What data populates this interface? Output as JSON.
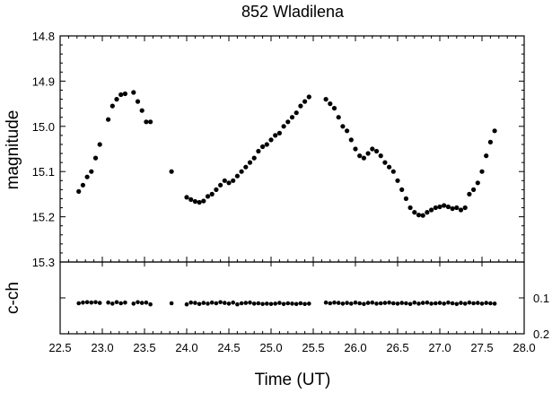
{
  "chart_data": [
    {
      "type": "scatter",
      "panel": "magnitude",
      "title": "852 Wladilena",
      "xlabel": "Time (UT)",
      "ylabel": "magnitude",
      "xlim": [
        22.5,
        28.0
      ],
      "ylim": [
        15.3,
        14.8
      ],
      "y_inverted": true,
      "grid": false,
      "x_ticks": [
        "22.5",
        "23.0",
        "23.5",
        "24.0",
        "24.5",
        "25.0",
        "25.5",
        "26.0",
        "26.5",
        "27.0",
        "27.5",
        "28.0"
      ],
      "y_ticks": [
        "14.8",
        "14.9",
        "15.0",
        "15.1",
        "15.2",
        "15.3"
      ],
      "series": [
        {
          "x": [
            22.72,
            22.77,
            22.82,
            22.87,
            22.92,
            22.97,
            23.07,
            23.12,
            23.17,
            23.22,
            23.27,
            23.37,
            23.42,
            23.47,
            23.52,
            23.57,
            23.82,
            24.0,
            24.05,
            24.1,
            24.15,
            24.2,
            24.25,
            24.3,
            24.35,
            24.4,
            24.45,
            24.5,
            24.55,
            24.6,
            24.65,
            24.7,
            24.75,
            24.8,
            24.85,
            24.9,
            24.95,
            25.0,
            25.05,
            25.1,
            25.15,
            25.2,
            25.25,
            25.3,
            25.35,
            25.4,
            25.45,
            25.65,
            25.7,
            25.75,
            25.8,
            25.85,
            25.9,
            25.95,
            26.0,
            26.05,
            26.1,
            26.15,
            26.2,
            26.25,
            26.3,
            26.35,
            26.4,
            26.45,
            26.5,
            26.55,
            26.6,
            26.65,
            26.7,
            26.75,
            26.8,
            26.85,
            26.9,
            26.95,
            27.0,
            27.05,
            27.1,
            27.15,
            27.2,
            27.25,
            27.3,
            27.35,
            27.4,
            27.45,
            27.5,
            27.55,
            27.6,
            27.65
          ],
          "y": [
            15.144,
            15.13,
            15.112,
            15.1,
            15.07,
            15.04,
            14.985,
            14.955,
            14.94,
            14.93,
            14.928,
            14.925,
            14.945,
            14.965,
            14.99,
            14.99,
            15.1,
            15.157,
            15.162,
            15.166,
            15.168,
            15.165,
            15.155,
            15.15,
            15.14,
            15.13,
            15.12,
            15.125,
            15.12,
            15.11,
            15.1,
            15.09,
            15.08,
            15.07,
            15.055,
            15.045,
            15.04,
            15.03,
            15.02,
            15.015,
            15.0,
            14.99,
            14.98,
            14.97,
            14.955,
            14.945,
            14.935,
            14.94,
            14.95,
            14.96,
            14.98,
            15.0,
            15.01,
            15.03,
            15.05,
            15.065,
            15.07,
            15.06,
            15.05,
            15.055,
            15.065,
            15.08,
            15.09,
            15.1,
            15.12,
            15.14,
            15.16,
            15.18,
            15.19,
            15.196,
            15.197,
            15.19,
            15.185,
            15.18,
            15.178,
            15.175,
            15.178,
            15.182,
            15.18,
            15.185,
            15.18,
            15.15,
            15.14,
            15.125,
            15.1,
            15.065,
            15.035,
            15.01
          ]
        }
      ]
    },
    {
      "type": "scatter",
      "panel": "comparison",
      "ylabel": "c-ch",
      "xlim": [
        22.5,
        28.0
      ],
      "ylim": [
        0.0,
        0.2
      ],
      "y_ticks": [
        "0.1",
        "0.2"
      ],
      "y_ticks_side": "right",
      "series": [
        {
          "x": [
            22.72,
            22.77,
            22.82,
            22.87,
            22.92,
            22.97,
            23.07,
            23.12,
            23.17,
            23.22,
            23.27,
            23.37,
            23.42,
            23.47,
            23.52,
            23.57,
            23.82,
            24.0,
            24.05,
            24.1,
            24.15,
            24.2,
            24.25,
            24.3,
            24.35,
            24.4,
            24.45,
            24.5,
            24.55,
            24.6,
            24.65,
            24.7,
            24.75,
            24.8,
            24.85,
            24.9,
            24.95,
            25.0,
            25.05,
            25.1,
            25.15,
            25.2,
            25.25,
            25.3,
            25.35,
            25.4,
            25.45,
            25.65,
            25.7,
            25.75,
            25.8,
            25.85,
            25.9,
            25.95,
            26.0,
            26.05,
            26.1,
            26.15,
            26.2,
            26.25,
            26.3,
            26.35,
            26.4,
            26.45,
            26.5,
            26.55,
            26.6,
            26.65,
            26.7,
            26.75,
            26.8,
            26.85,
            26.9,
            26.95,
            27.0,
            27.05,
            27.1,
            27.15,
            27.2,
            27.25,
            27.3,
            27.35,
            27.4,
            27.45,
            27.5,
            27.55,
            27.6,
            27.65
          ],
          "y": [
            0.115,
            0.113,
            0.112,
            0.113,
            0.112,
            0.114,
            0.113,
            0.116,
            0.112,
            0.115,
            0.113,
            0.116,
            0.112,
            0.114,
            0.113,
            0.118,
            0.115,
            0.118,
            0.113,
            0.114,
            0.117,
            0.114,
            0.116,
            0.113,
            0.115,
            0.112,
            0.114,
            0.116,
            0.113,
            0.118,
            0.115,
            0.114,
            0.113,
            0.116,
            0.115,
            0.117,
            0.116,
            0.117,
            0.116,
            0.114,
            0.117,
            0.115,
            0.116,
            0.117,
            0.115,
            0.117,
            0.116,
            0.113,
            0.115,
            0.113,
            0.114,
            0.116,
            0.114,
            0.116,
            0.113,
            0.115,
            0.117,
            0.114,
            0.113,
            0.116,
            0.115,
            0.114,
            0.113,
            0.115,
            0.116,
            0.114,
            0.115,
            0.117,
            0.113,
            0.116,
            0.114,
            0.113,
            0.116,
            0.115,
            0.114,
            0.116,
            0.113,
            0.115,
            0.117,
            0.114,
            0.116,
            0.113,
            0.115,
            0.114,
            0.116,
            0.114,
            0.115,
            0.116
          ]
        }
      ]
    }
  ]
}
